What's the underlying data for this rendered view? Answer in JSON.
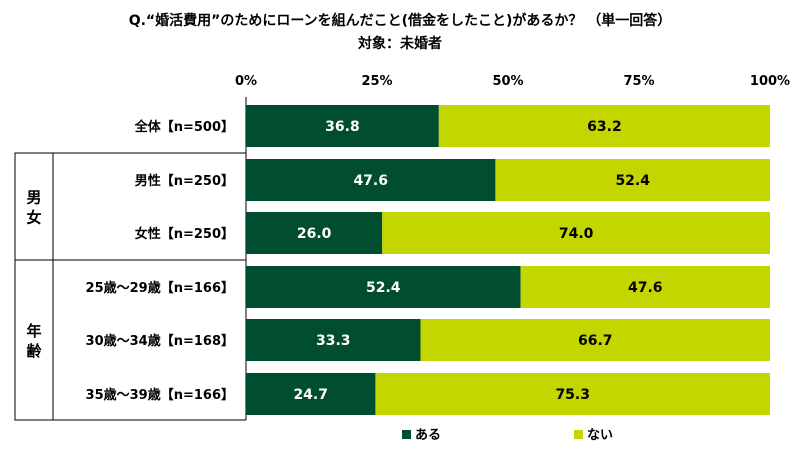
{
  "title": "Q.“婚活費用”のためにローンを組んだこと(借金をしたこと)があるか？ （単一回答）",
  "subtitle": "対象：未婚者",
  "chart_data": {
    "type": "bar",
    "orientation": "horizontal",
    "stacked": true,
    "percent": true,
    "xlim": [
      0,
      100
    ],
    "ticks": [
      "0%",
      "25%",
      "50%",
      "75%",
      "100%"
    ],
    "categories": [
      "全体【n=500】",
      "男性【n=250】",
      "女性【n=250】",
      "25歳〜29歳【n=166】",
      "30歳〜34歳【n=168】",
      "35歳〜39歳【n=166】"
    ],
    "groups": [
      {
        "label": "男女",
        "rows": [
          1,
          2
        ]
      },
      {
        "label": "年齢",
        "rows": [
          3,
          4,
          5
        ]
      }
    ],
    "series": [
      {
        "name": "ある",
        "color": "#004d2f",
        "label_color": "#ffffff",
        "values": [
          36.8,
          47.6,
          26.0,
          52.4,
          33.3,
          24.7
        ],
        "labels": [
          "36.8",
          "47.6",
          "26.0",
          "52.4",
          "33.3",
          "24.7"
        ]
      },
      {
        "name": "ない",
        "color": "#c3d600",
        "label_color": "#000000",
        "values": [
          63.2,
          52.4,
          74.0,
          47.6,
          66.7,
          75.3
        ],
        "labels": [
          "63.2",
          "52.4",
          "74.0",
          "47.6",
          "66.7",
          "75.3"
        ]
      }
    ],
    "legend_position": "bottom"
  }
}
